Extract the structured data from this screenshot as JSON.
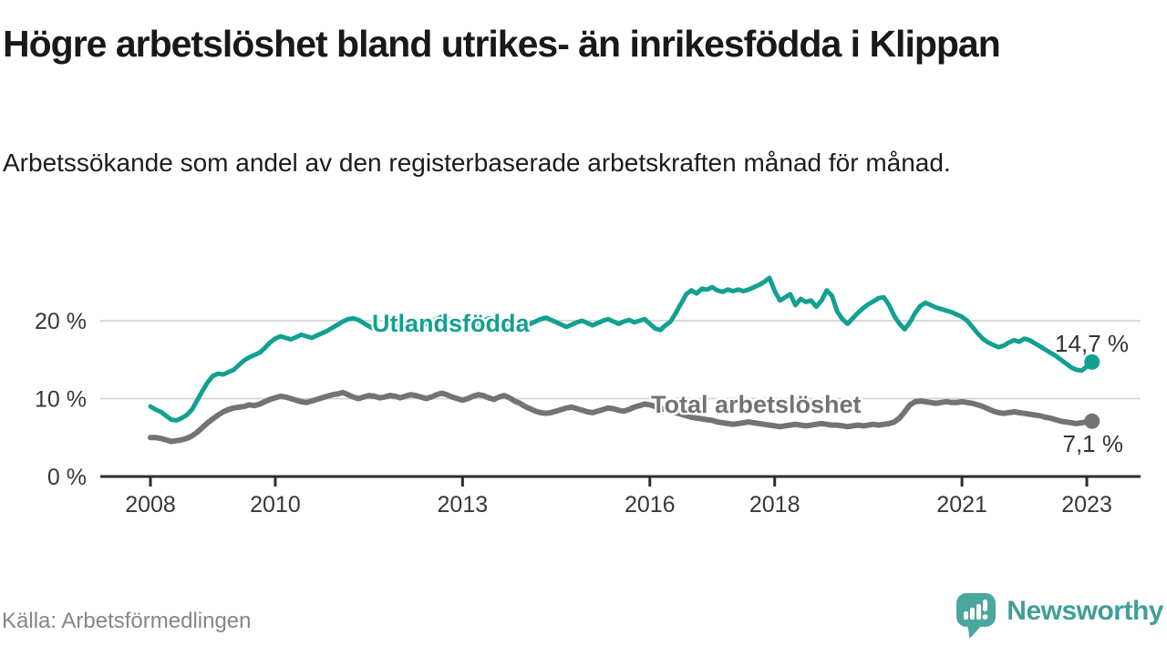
{
  "header": {
    "title": "Högre arbetslöshet bland utrikes- än inrikesfödda i Klippan",
    "subtitle": "Arbetssökande som andel av den registerbaserade arbetskraften månad för månad."
  },
  "chart_data": {
    "type": "line",
    "unit": "%",
    "x_start": "2008-01",
    "x_end": "2023-02",
    "frequency": "monthly",
    "grid": "horizontal",
    "ylim": [
      0,
      27
    ],
    "x_tick_years": [
      "2008",
      "2010",
      "2013",
      "2016",
      "2018",
      "2021",
      "2023"
    ],
    "y_ticks": [
      {
        "value": 0,
        "label": "0 %"
      },
      {
        "value": 10,
        "label": "10 %"
      },
      {
        "value": 20,
        "label": "20 %"
      }
    ],
    "series": [
      {
        "name": "Utlandsfödda",
        "color": "#12a091",
        "end_value": 14.7,
        "end_label": "14,7 %",
        "values": [
          9.0,
          8.6,
          8.3,
          7.8,
          7.3,
          7.2,
          7.5,
          7.9,
          8.6,
          9.8,
          11.0,
          12.1,
          12.9,
          13.2,
          13.1,
          13.4,
          13.7,
          14.3,
          14.9,
          15.3,
          15.6,
          15.9,
          16.5,
          17.2,
          17.7,
          18.0,
          17.8,
          17.6,
          17.9,
          18.2,
          18.0,
          17.8,
          18.1,
          18.4,
          18.7,
          19.1,
          19.5,
          19.9,
          20.2,
          20.3,
          20.1,
          19.7,
          19.3,
          18.9,
          18.8,
          19.0,
          19.3,
          19.1,
          19.4,
          19.7,
          19.9,
          19.6,
          19.3,
          19.6,
          19.9,
          20.2,
          20.5,
          20.3,
          19.9,
          19.6,
          19.3,
          19.0,
          19.4,
          19.7,
          20.0,
          20.3,
          20.1,
          19.8,
          19.5,
          19.7,
          19.9,
          19.6,
          19.3,
          19.6,
          19.9,
          20.2,
          20.4,
          20.1,
          19.8,
          19.5,
          19.2,
          19.5,
          19.8,
          20.0,
          19.7,
          19.4,
          19.7,
          20.0,
          20.2,
          19.9,
          19.6,
          19.9,
          20.1,
          19.8,
          20.0,
          20.2,
          19.6,
          19.0,
          18.8,
          19.4,
          19.9,
          21.0,
          22.2,
          23.4,
          23.9,
          23.5,
          24.1,
          24.0,
          24.3,
          23.9,
          23.7,
          24.0,
          23.8,
          24.0,
          23.8,
          24.0,
          24.3,
          24.6,
          25.0,
          25.5,
          23.8,
          22.6,
          23.0,
          23.4,
          22.0,
          22.8,
          22.4,
          22.6,
          21.8,
          22.6,
          23.9,
          23.2,
          21.2,
          20.2,
          19.6,
          20.3,
          21.0,
          21.6,
          22.1,
          22.5,
          22.9,
          23.0,
          22.0,
          20.6,
          19.6,
          18.9,
          19.8,
          21.0,
          21.9,
          22.3,
          22.0,
          21.7,
          21.5,
          21.3,
          21.1,
          20.8,
          20.5,
          20.0,
          19.2,
          18.4,
          17.7,
          17.2,
          16.9,
          16.6,
          16.8,
          17.2,
          17.5,
          17.3,
          17.7,
          17.5,
          17.1,
          16.7,
          16.3,
          15.9,
          15.5,
          15.0,
          14.5,
          14.0,
          13.7,
          13.6,
          14.1,
          14.7
        ]
      },
      {
        "name": "Total arbetslöshet",
        "color": "#737373",
        "end_value": 7.1,
        "end_label": "7,1 %",
        "values": [
          5.0,
          5.0,
          4.9,
          4.7,
          4.5,
          4.6,
          4.7,
          4.9,
          5.2,
          5.7,
          6.3,
          6.9,
          7.4,
          7.9,
          8.3,
          8.6,
          8.8,
          8.9,
          9.0,
          9.2,
          9.1,
          9.3,
          9.6,
          9.9,
          10.1,
          10.3,
          10.2,
          10.0,
          9.8,
          9.6,
          9.5,
          9.7,
          9.9,
          10.1,
          10.3,
          10.5,
          10.6,
          10.8,
          10.5,
          10.2,
          10.0,
          10.2,
          10.4,
          10.3,
          10.1,
          10.2,
          10.4,
          10.3,
          10.1,
          10.3,
          10.5,
          10.4,
          10.2,
          10.0,
          10.2,
          10.5,
          10.7,
          10.5,
          10.2,
          10.0,
          9.8,
          10.0,
          10.3,
          10.5,
          10.4,
          10.1,
          9.9,
          10.2,
          10.4,
          10.1,
          9.7,
          9.4,
          9.0,
          8.7,
          8.4,
          8.2,
          8.1,
          8.2,
          8.4,
          8.6,
          8.8,
          8.9,
          8.7,
          8.5,
          8.3,
          8.2,
          8.4,
          8.6,
          8.8,
          8.7,
          8.5,
          8.4,
          8.6,
          8.9,
          9.1,
          9.3,
          9.2,
          9.0,
          8.8,
          8.6,
          8.4,
          8.2,
          8.0,
          7.8,
          7.6,
          7.5,
          7.4,
          7.3,
          7.2,
          7.0,
          6.9,
          6.8,
          6.7,
          6.8,
          6.9,
          7.0,
          6.9,
          6.8,
          6.7,
          6.6,
          6.5,
          6.4,
          6.5,
          6.6,
          6.7,
          6.6,
          6.5,
          6.6,
          6.7,
          6.8,
          6.7,
          6.6,
          6.6,
          6.5,
          6.4,
          6.5,
          6.6,
          6.5,
          6.6,
          6.7,
          6.6,
          6.7,
          6.8,
          7.0,
          7.5,
          8.3,
          9.2,
          9.6,
          9.7,
          9.6,
          9.5,
          9.4,
          9.5,
          9.6,
          9.5,
          9.5,
          9.6,
          9.5,
          9.4,
          9.2,
          9.0,
          8.7,
          8.4,
          8.2,
          8.1,
          8.2,
          8.3,
          8.2,
          8.1,
          8.0,
          7.9,
          7.8,
          7.6,
          7.5,
          7.3,
          7.1,
          7.0,
          6.9,
          6.8,
          6.9,
          7.0,
          7.1
        ]
      }
    ]
  },
  "footer": {
    "source": "Källa: Arbetsförmedlingen",
    "brand": "Newsworthy"
  },
  "colors": {
    "accent_teal": "#12a091",
    "line_gray": "#737373",
    "gridline": "#d4d4d4",
    "axis": "#2d2d2d",
    "brand_teal": "#4ba6a0"
  }
}
